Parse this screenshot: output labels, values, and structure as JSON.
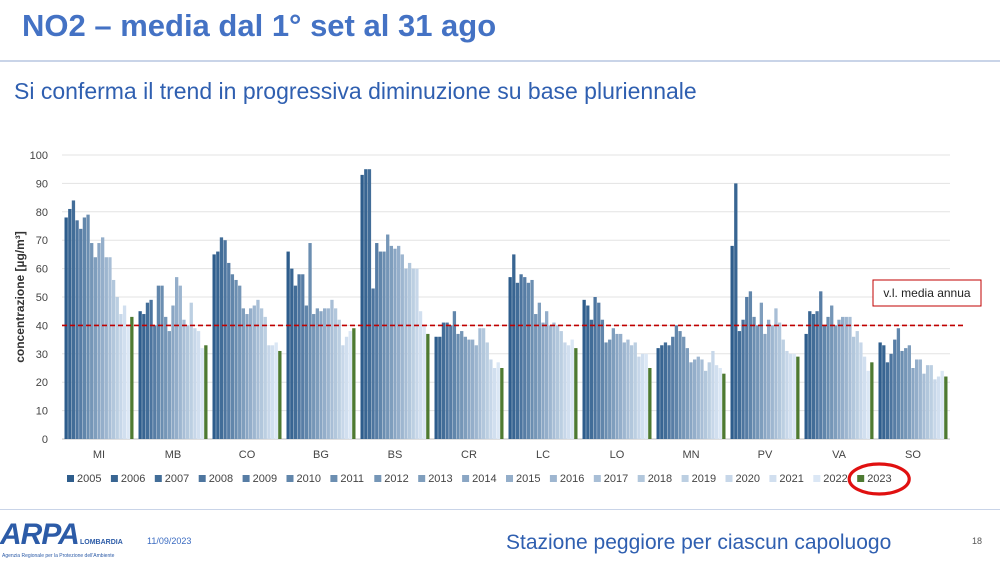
{
  "slide": {
    "title": "NO2 – media dal 1° set al 31 ago",
    "subtitle": "Si conferma il trend in progressiva diminuzione su base pluriennale",
    "footer_note": "Stazione peggiore per ciascun capoluogo",
    "date": "11/09/2023",
    "page": "18",
    "logo_text": "ARPA",
    "logo_region": "LOMBARDIA",
    "logo_tagline": "Agenzia Regionale per la Protezione dell'Ambiente"
  },
  "colors": {
    "series_dark": "#2e5d8c",
    "series_light": "#dbe7f5",
    "highlight_2023": "#4e7a32",
    "limit_line": "#c00000",
    "annotation_border": "#c00000",
    "circle": "#e01010",
    "title": "#4472c4"
  },
  "chart_data": {
    "type": "bar",
    "ylabel": "concentrazione [µg/m³]",
    "ylim": [
      0,
      100
    ],
    "yticks": [
      0,
      10,
      20,
      30,
      40,
      50,
      60,
      70,
      80,
      90,
      100
    ],
    "grid": true,
    "legend_position": "bottom",
    "categories": [
      "MI",
      "MB",
      "CO",
      "BG",
      "BS",
      "CR",
      "LC",
      "LO",
      "MN",
      "PV",
      "VA",
      "SO"
    ],
    "series_names": [
      "2005",
      "2006",
      "2007",
      "2008",
      "2009",
      "2010",
      "2011",
      "2012",
      "2013",
      "2014",
      "2015",
      "2016",
      "2017",
      "2018",
      "2019",
      "2020",
      "2021",
      "2022",
      "2023"
    ],
    "values_by_city": {
      "MI": [
        78,
        81,
        84,
        77,
        74,
        78,
        79,
        69,
        64,
        69,
        71,
        64,
        64,
        56,
        50,
        44,
        47,
        40,
        43
      ],
      "MB": [
        45,
        44,
        48,
        49,
        40,
        54,
        54,
        43,
        38,
        47,
        57,
        54,
        42,
        40,
        48,
        39,
        38,
        32,
        33
      ],
      "CO": [
        65,
        66,
        71,
        70,
        62,
        58,
        56,
        54,
        46,
        44,
        46,
        47,
        49,
        46,
        43,
        33,
        33,
        34,
        31
      ],
      "BG": [
        66,
        60,
        54,
        58,
        58,
        47,
        69,
        44,
        46,
        45,
        46,
        46,
        49,
        46,
        42,
        33,
        36,
        38,
        39
      ],
      "BS": [
        93,
        95,
        95,
        53,
        69,
        66,
        66,
        72,
        68,
        67,
        68,
        65,
        60,
        62,
        60,
        60,
        45,
        40,
        37
      ],
      "CR": [
        36,
        36,
        41,
        41,
        40,
        45,
        37,
        38,
        36,
        35,
        35,
        33,
        39,
        39,
        34,
        28,
        25,
        27,
        25
      ],
      "LC": [
        57,
        65,
        55,
        58,
        57,
        55,
        56,
        44,
        48,
        41,
        45,
        40,
        41,
        40,
        38,
        34,
        33,
        35,
        32
      ],
      "LO": [
        49,
        47,
        42,
        50,
        48,
        42,
        34,
        35,
        39,
        37,
        37,
        34,
        35,
        33,
        34,
        29,
        30,
        30,
        25
      ],
      "MN": [
        32,
        33,
        34,
        33,
        36,
        40,
        38,
        36,
        32,
        27,
        28,
        29,
        28,
        24,
        27,
        31,
        26,
        25,
        23
      ],
      "PV": [
        68,
        90,
        38,
        42,
        50,
        52,
        43,
        40,
        48,
        37,
        42,
        40,
        46,
        41,
        35,
        31,
        30,
        30,
        29
      ],
      "VA": [
        37,
        45,
        44,
        45,
        52,
        40,
        43,
        47,
        40,
        42,
        43,
        43,
        43,
        36,
        38,
        34,
        29,
        24,
        27
      ],
      "SO": [
        34,
        33,
        27,
        30,
        35,
        39,
        31,
        32,
        33,
        25,
        28,
        28,
        23,
        26,
        26,
        21,
        22,
        24,
        22
      ]
    },
    "limit_value": 40,
    "limit_label": "v.l. media annua",
    "highlighted_series": "2023"
  }
}
